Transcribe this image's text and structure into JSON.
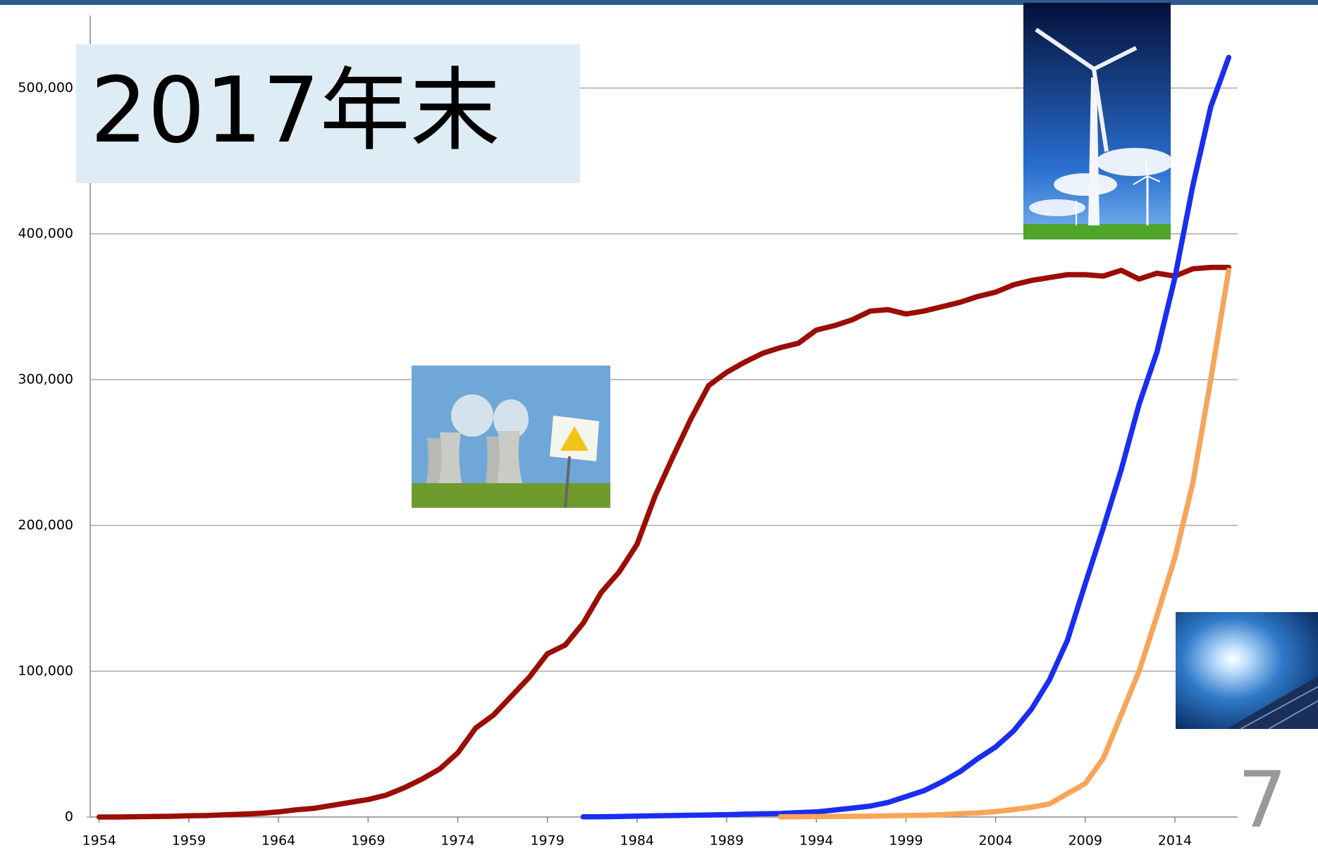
{
  "chart_data": {
    "type": "line",
    "title": "2017年末",
    "page_number": "7",
    "x": [
      1954,
      1955,
      1956,
      1957,
      1958,
      1959,
      1960,
      1961,
      1962,
      1963,
      1964,
      1965,
      1966,
      1967,
      1968,
      1969,
      1970,
      1971,
      1972,
      1973,
      1974,
      1975,
      1976,
      1977,
      1978,
      1979,
      1980,
      1981,
      1982,
      1983,
      1984,
      1985,
      1986,
      1987,
      1988,
      1989,
      1990,
      1991,
      1992,
      1993,
      1994,
      1995,
      1996,
      1997,
      1998,
      1999,
      2000,
      2001,
      2002,
      2003,
      2004,
      2005,
      2006,
      2007,
      2008,
      2009,
      2010,
      2011,
      2012,
      2013,
      2014,
      2015,
      2016,
      2017
    ],
    "series": [
      {
        "color": "#9b0d05",
        "values": [
          0,
          0,
          200,
          400,
          500,
          800,
          1000,
          1500,
          2000,
          2500,
          3500,
          5000,
          6000,
          8000,
          10000,
          12000,
          15000,
          20000,
          26000,
          33000,
          44000,
          61000,
          70000,
          83000,
          96000,
          112000,
          118000,
          133000,
          154000,
          168000,
          187000,
          220000,
          247000,
          273000,
          296000,
          305000,
          312000,
          318000,
          322000,
          325000,
          334000,
          337000,
          341000,
          347000,
          348000,
          345000,
          347000,
          350000,
          353000,
          357000,
          360000,
          365000,
          368000,
          370000,
          372000,
          372000,
          371000,
          375000,
          369000,
          373000,
          371000,
          376000,
          377000,
          377000
        ]
      },
      {
        "color": "#1a2ef0",
        "values": [
          null,
          null,
          null,
          null,
          null,
          null,
          null,
          null,
          null,
          null,
          null,
          null,
          null,
          null,
          null,
          null,
          null,
          null,
          null,
          null,
          null,
          null,
          null,
          null,
          null,
          null,
          null,
          100,
          200,
          400,
          600,
          800,
          1000,
          1200,
          1400,
          1600,
          2000,
          2200,
          2400,
          3000,
          3500,
          4800,
          6100,
          7500,
          10000,
          14000,
          18000,
          24000,
          31000,
          40000,
          48000,
          59000,
          74000,
          94000,
          121000,
          160000,
          198000,
          238000,
          283000,
          319000,
          370000,
          433000,
          487000,
          521000
        ]
      },
      {
        "color": "#f7a55a",
        "values": [
          null,
          null,
          null,
          null,
          null,
          null,
          null,
          null,
          null,
          null,
          null,
          null,
          null,
          null,
          null,
          null,
          null,
          null,
          null,
          null,
          null,
          null,
          null,
          null,
          null,
          null,
          null,
          null,
          null,
          null,
          null,
          null,
          null,
          null,
          null,
          null,
          null,
          null,
          100,
          200,
          300,
          400,
          500,
          600,
          800,
          1000,
          1200,
          1600,
          2200,
          2800,
          3700,
          5100,
          6700,
          9000,
          16000,
          23000,
          40000,
          70000,
          100000,
          138000,
          178000,
          229000,
          300000,
          375000
        ]
      }
    ],
    "xlim": [
      1953.5,
      2017.5
    ],
    "xticks": [
      1954,
      1959,
      1964,
      1969,
      1974,
      1979,
      1984,
      1989,
      1994,
      1999,
      2004,
      2009,
      2014
    ],
    "ylim": [
      0,
      550000
    ],
    "yticks": [
      0,
      {
        "value": 100000,
        "label": "100,000"
      },
      {
        "value": 200000,
        "label": "200,000"
      },
      {
        "value": 300000,
        "label": "300,000"
      },
      {
        "value": 400000,
        "label": "400,000"
      },
      {
        "value": 500000,
        "label": "500,000"
      }
    ],
    "grid": true
  }
}
